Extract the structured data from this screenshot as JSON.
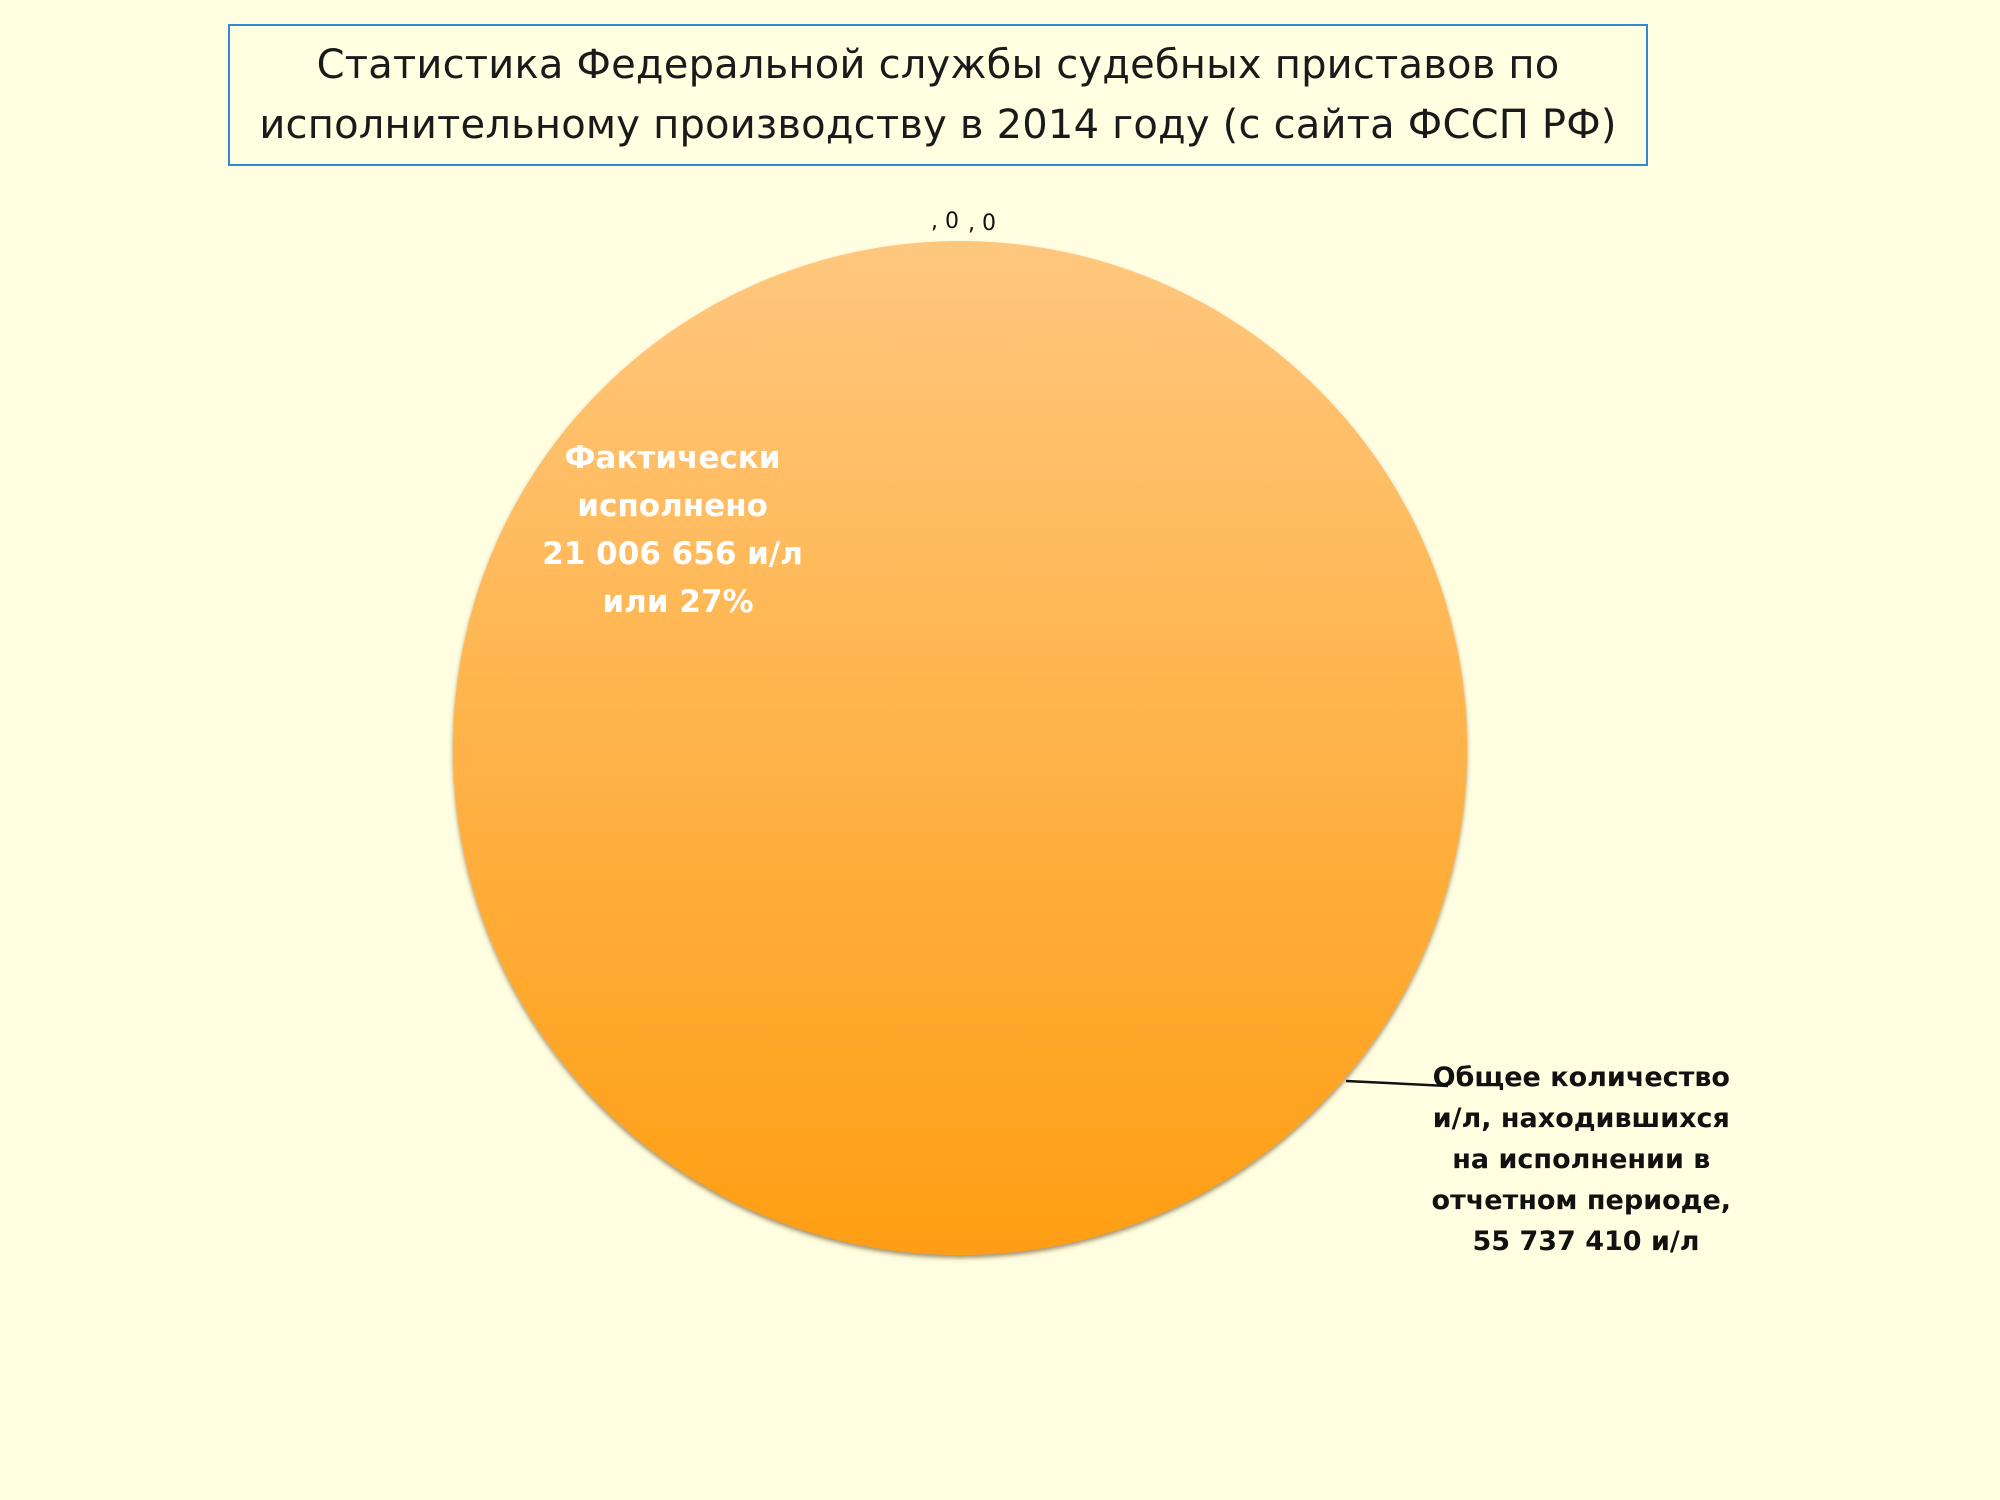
{
  "title": "Статистика Федеральной службы судебных приставов по\nисполнительному производству в 2014 году (с сайта ФССП РФ)",
  "colors": {
    "background": "#FFFEE0",
    "title_border": "#2E8BD0",
    "pie_top": "#FFC77E",
    "pie_bottom": "#FF9E12",
    "pie_edge": "#5A3A10"
  },
  "chart_data": {
    "type": "pie",
    "title": "Статистика Федеральной службы судебных приставов по исполнительному производству в 2014 году (с сайта ФССП РФ)",
    "slices": [
      {
        "label_lines": [
          "Фактически",
          "исполнено",
          "21 006 656 и/л",
          "или 27%"
        ],
        "value": 21006656
      },
      {
        "label_lines": [
          "Общее количество",
          "и/л, находившихся",
          "на исполнении в",
          "отчетном периоде,",
          "55 737 410 и/л"
        ],
        "value": 55737410
      }
    ],
    "zero_labels": [
      ", 0",
      ", 0"
    ],
    "legend": "none"
  }
}
